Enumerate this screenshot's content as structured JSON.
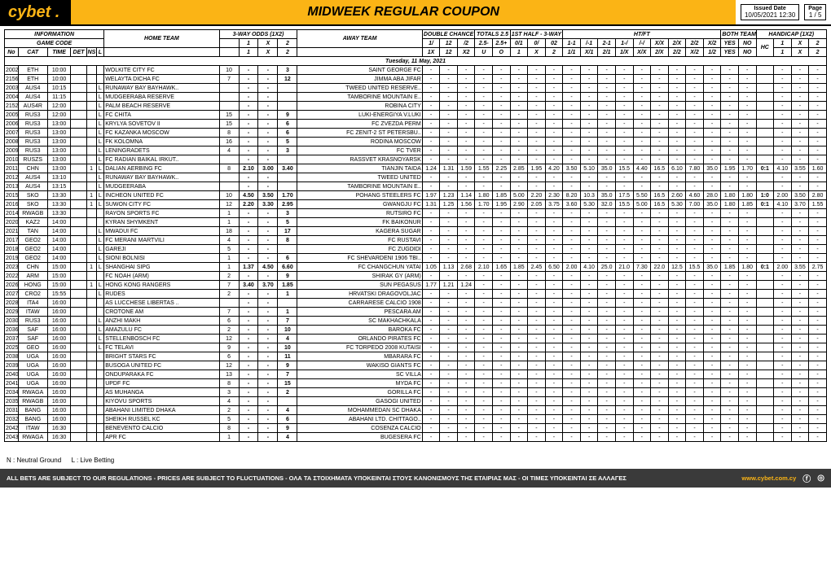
{
  "brand": "cybet",
  "title": "MIDWEEK REGULAR COUPON",
  "issued_label": "Issued Date",
  "issued_value": "10/05/2021 12:30",
  "page_label": "Page",
  "page_value": "1 / 5",
  "colors": {
    "accent": "#fbb415",
    "footer_bg": "#3a3a3a"
  },
  "header_groups": [
    "INFORMATION",
    "3-WAY ODDS (1X2)",
    "",
    "DOUBLE CHANCE",
    "TOTALS 2.5",
    "1ST HALF - 3-WAY",
    "HT/FT",
    "BOTH TEAMS TO SCORE",
    "HANDICAP (1X2)"
  ],
  "header_row2_left": "GAME CODE",
  "header_row2_home": "HOME TEAM",
  "header_row2_away": "AWAY TEAM",
  "sub_1x2": [
    "1",
    "X",
    "2"
  ],
  "sub_left": [
    "No",
    "CAT",
    "TIME",
    "DET",
    "NS",
    "L"
  ],
  "sub_dc": [
    "1/",
    "12",
    "/2"
  ],
  "sub_tot": [
    "2.5-",
    "2.5+"
  ],
  "sub_1h": [
    "0/1",
    "0/",
    "02"
  ],
  "sub_htft": [
    "1-1",
    "/-1",
    "2-1",
    "1-/",
    "/-/",
    "X/X",
    "2/X",
    "2/2",
    "X/2",
    "/-2",
    "1-2",
    "++"
  ],
  "sub_bt": [
    "YES",
    "NO"
  ],
  "sub_hc": [
    "HC",
    "1",
    "X",
    "2"
  ],
  "sub_mid": [
    "1X",
    "12",
    "X2",
    "U",
    "O",
    "1",
    "X",
    "2",
    "1/1",
    "X/1",
    "2/1",
    "1/X",
    "X/X",
    "2/X",
    "2/2",
    "X/2",
    "1/2"
  ],
  "date_heading": "Tuesday, 11 May, 2021",
  "legend": "N : Neutral Ground   L : Live Betting",
  "disclaimer": "ALL BETS ARE SUBJECT TO OUR REGULATIONS - PRICES ARE SUBJECT TO FLUCTUATIONS - ΟΛΑ ΤΑ ΣΤΟΙΧΗΜΑΤΑ ΥΠΟΚΕΙΝΤΑΙ ΣΤΟΥΣ ΚΑΝΟΝΙΣΜΟΥΣ ΤΗΣ ΕΤΑΙΡΙΑΣ ΜΑΣ - ΟΙ ΤΙΜΕΣ ΥΠΟΚΕΙΝΤΑΙ ΣΕ ΑΛΛΑΓΕΣ",
  "url": "www.cybet.com.cy",
  "rows": [
    {
      "no": "2002",
      "cat": "ETH",
      "time": "10:00",
      "l": "",
      "home": "WOLKITE CITY FC",
      "o1": "10",
      "ox": "-",
      "o2": "-",
      "ac": "3",
      "away": "SAINT GEORGE FC"
    },
    {
      "no": "2156",
      "cat": "ETH",
      "time": "10:00",
      "l": "",
      "home": "WELAYTA DICHA FC",
      "o1": "7",
      "ox": "-",
      "o2": "-",
      "ac": "12",
      "away": "JIMMA ABA JIFAR"
    },
    {
      "no": "2003",
      "cat": "AUS4",
      "time": "10:15",
      "l": "L",
      "home": "RUNAWAY BAY BAYHAWK..",
      "o1": "",
      "ox": "-",
      "o2": "-",
      "ac": "",
      "away": "TWEED UNITED RESERVE.."
    },
    {
      "no": "2004",
      "cat": "AUS4",
      "time": "11:15",
      "l": "L",
      "home": "MUDGEERABA RESERVE",
      "o1": "",
      "ox": "-",
      "o2": "-",
      "ac": "",
      "away": "TAMBORINE MOUNTAIN E.."
    },
    {
      "no": "2152",
      "cat": "AUS4R",
      "time": "12:00",
      "l": "L",
      "home": "PALM BEACH RESERVE",
      "o1": "",
      "ox": "-",
      "o2": "-",
      "ac": "",
      "away": "ROBINA CITY"
    },
    {
      "no": "2005",
      "cat": "RUS3",
      "time": "12:00",
      "l": "L",
      "home": "FC CHITA",
      "o1": "15",
      "ox": "-",
      "o2": "-",
      "ac": "9",
      "away": "LUKI-ENERGIYA V.LUKI"
    },
    {
      "no": "2006",
      "cat": "RUS3",
      "time": "13:00",
      "l": "L",
      "home": "KRYLYA SOVETOV II",
      "o1": "15",
      "ox": "-",
      "o2": "-",
      "ac": "6",
      "away": "FC ZVEZDA PERM"
    },
    {
      "no": "2007",
      "cat": "RUS3",
      "time": "13:00",
      "l": "L",
      "home": "FC KAZANKA MOSCOW",
      "o1": "8",
      "ox": "-",
      "o2": "-",
      "ac": "6",
      "away": "FC ZENIT-2 ST PETERSBU.."
    },
    {
      "no": "2008",
      "cat": "RUS3",
      "time": "13:00",
      "l": "L",
      "home": "FK KOLOMNA",
      "o1": "16",
      "ox": "-",
      "o2": "-",
      "ac": "5",
      "away": "RODINA MOSCOW"
    },
    {
      "no": "2009",
      "cat": "RUS3",
      "time": "13:00",
      "l": "L",
      "home": "LENINGRADETS",
      "o1": "4",
      "ox": "-",
      "o2": "-",
      "ac": "3",
      "away": "FC TVER"
    },
    {
      "no": "2010",
      "cat": "RUSZS",
      "time": "13:00",
      "l": "L",
      "home": "FC RADIAN BAIKAL IRKUT..",
      "o1": "",
      "ox": "-",
      "o2": "-",
      "ac": "",
      "away": "RASSVET KRASNOYARSK"
    },
    {
      "no": "2011",
      "cat": "CHN",
      "time": "13:00",
      "ns": "1",
      "l": "L",
      "home": "DALIAN AERBING FC",
      "o1": "8",
      "ox": "2.10",
      "o2": "3.00",
      "o3": "3.40",
      "ac": "7",
      "away": "TIANJIN TAIDA",
      "odds": [
        "1.24",
        "1.31",
        "1.59",
        "1.55",
        "2.25",
        "2.85",
        "1.95",
        "4.20",
        "3.50",
        "5.10",
        "35.0",
        "15.5",
        "4.40",
        "16.5",
        "6.10",
        "7.80",
        "35.0",
        "1.95",
        "1.70"
      ],
      "hc": [
        "0:1",
        "4.10",
        "3.55",
        "1.60"
      ]
    },
    {
      "no": "2012",
      "cat": "AUS4",
      "time": "13:10",
      "l": "L",
      "home": "RUNAWAY BAY BAYHAWK..",
      "o1": "",
      "ox": "-",
      "o2": "-",
      "ac": "",
      "away": "TWEED UNITED"
    },
    {
      "no": "2013",
      "cat": "AUS4",
      "time": "13:15",
      "l": "L",
      "home": "MUDGEERABA",
      "o1": "",
      "ox": "-",
      "o2": "-",
      "ac": "",
      "away": "TAMBORINE MOUNTAIN E.."
    },
    {
      "no": "2015",
      "cat": "SKO",
      "time": "13:30",
      "ns": "1",
      "l": "L",
      "home": "INCHEON UNITED FC",
      "o1": "10",
      "ox": "4.50",
      "o2": "3.50",
      "o3": "1.70",
      "ac": "6",
      "away": "POHANG STEELERS FC",
      "odds": [
        "1.97",
        "1.23",
        "1.14",
        "1.80",
        "1.85",
        "5.00",
        "2.20",
        "2.30",
        "8.20",
        "10.3",
        "35.0",
        "17.5",
        "5.50",
        "16.5",
        "2.60",
        "4.60",
        "28.0",
        "1.80",
        "1.80"
      ],
      "hc": [
        "1:0",
        "2.00",
        "3.50",
        "2.80"
      ]
    },
    {
      "no": "2016",
      "cat": "SKO",
      "time": "13:30",
      "ns": "1",
      "l": "L",
      "home": "SUWON CITY FC",
      "o1": "12",
      "ox": "2.20",
      "o2": "3.30",
      "o3": "2.95",
      "ac": "11",
      "away": "GWANGJU FC",
      "odds": [
        "1.31",
        "1.25",
        "1.56",
        "1.70",
        "1.95",
        "2.90",
        "2.05",
        "3.75",
        "3.60",
        "5.30",
        "32.0",
        "15.5",
        "5.00",
        "16.5",
        "5.30",
        "7.00",
        "35.0",
        "1.80",
        "1.85"
      ],
      "hc": [
        "0:1",
        "4.10",
        "3.70",
        "1.55"
      ]
    },
    {
      "no": "2014",
      "cat": "RWAGB",
      "time": "13:30",
      "l": "",
      "home": "RAYON SPORTS FC",
      "o1": "1",
      "ox": "-",
      "o2": "-",
      "ac": "3",
      "away": "RUTSIRO FC"
    },
    {
      "no": "2020",
      "cat": "KAZ2",
      "time": "14:00",
      "l": "",
      "home": "KYRAN SHYMKENT",
      "o1": "1",
      "ox": "-",
      "o2": "-",
      "ac": "5",
      "away": "FK BAIKONUR"
    },
    {
      "no": "2021",
      "cat": "TAN",
      "time": "14:00",
      "l": "L",
      "home": "MWADUI FC",
      "o1": "18",
      "ox": "-",
      "o2": "-",
      "ac": "17",
      "away": "KAGERA SUGAR"
    },
    {
      "no": "2017",
      "cat": "GEO2",
      "time": "14:00",
      "l": "L",
      "home": "FC MERANI MARTVILI",
      "o1": "4",
      "ox": "-",
      "o2": "-",
      "ac": "8",
      "away": "FC RUSTAVI"
    },
    {
      "no": "2018",
      "cat": "GEO2",
      "time": "14:00",
      "l": "L",
      "home": "GAREJI",
      "o1": "5",
      "ox": "-",
      "o2": "-",
      "ac": "",
      "away": "FC ZUGDIDI"
    },
    {
      "no": "2019",
      "cat": "GEO2",
      "time": "14:00",
      "l": "L",
      "home": "SIONI BOLNISI",
      "o1": "1",
      "ox": "-",
      "o2": "-",
      "ac": "6",
      "away": "FC SHEVARDENI 1906 TBI.."
    },
    {
      "no": "2023",
      "cat": "CHN",
      "time": "15:00",
      "ns": "1",
      "l": "L",
      "home": "SHANGHAI SIPG",
      "o1": "1",
      "ox": "1.37",
      "o2": "4.50",
      "o3": "6.60",
      "ac": "4",
      "away": "FC CHANGCHUN YATAI",
      "odds": [
        "1.05",
        "1.13",
        "2.68",
        "2.10",
        "1.65",
        "1.85",
        "2.45",
        "6.50",
        "2.00",
        "4.10",
        "25.0",
        "21.0",
        "7.30",
        "22.0",
        "12.5",
        "15.5",
        "35.0",
        "1.85",
        "1.80"
      ],
      "hc": [
        "0:1",
        "2.00",
        "3.55",
        "2.75"
      ]
    },
    {
      "no": "2022",
      "cat": "ARM",
      "time": "15:00",
      "l": "",
      "home": "FC NOAH (ARM)",
      "o1": "2",
      "ox": "-",
      "o2": "-",
      "ac": "9",
      "away": "SHIRAK GY (ARM)"
    },
    {
      "no": "2026",
      "cat": "HONG",
      "time": "15:00",
      "ns": "1",
      "l": "L",
      "home": "HONG KONG RANGERS",
      "o1": "7",
      "ox": "3.40",
      "o2": "3.70",
      "o3": "1.85",
      "ac": "3",
      "away": "SUN PEGASUS",
      "odds": [
        "1.77",
        "1.21",
        "1.24"
      ]
    },
    {
      "no": "2027",
      "cat": "CRO2",
      "time": "15:55",
      "l": "L",
      "home": "RUDES",
      "o1": "2",
      "ox": "-",
      "o2": "-",
      "ac": "1",
      "away": "HRVATSKI DRAGOVOLJAC"
    },
    {
      "no": "2028",
      "cat": "ITA4",
      "time": "16:00",
      "l": "",
      "home": "AS LUCCHESE LIBERTAS ..",
      "o1": "",
      "ox": "-",
      "o2": "-",
      "ac": "",
      "away": "CARRARESE CALCIO 1908"
    },
    {
      "no": "2029",
      "cat": "ITAW",
      "time": "16:00",
      "l": "",
      "home": "CROTONE AM",
      "o1": "7",
      "ox": "-",
      "o2": "-",
      "ac": "1",
      "away": "PESCARA AM"
    },
    {
      "no": "2030",
      "cat": "RUS3",
      "time": "16:00",
      "l": "L",
      "home": "ANZHI MAKH",
      "o1": "6",
      "ox": "-",
      "o2": "-",
      "ac": "7",
      "away": "SC MAKHACHKALA"
    },
    {
      "no": "2036",
      "cat": "SAF",
      "time": "16:00",
      "l": "L",
      "home": "AMAZULU FC",
      "o1": "2",
      "ox": "-",
      "o2": "-",
      "ac": "10",
      "away": "BAROKA FC"
    },
    {
      "no": "2037",
      "cat": "SAF",
      "time": "16:00",
      "l": "L",
      "home": "STELLENBOSCH FC",
      "o1": "12",
      "ox": "-",
      "o2": "-",
      "ac": "4",
      "away": "ORLANDO PIRATES FC"
    },
    {
      "no": "2025",
      "cat": "GEO",
      "time": "16:00",
      "l": "L",
      "home": "FC TELAVI",
      "o1": "9",
      "ox": "-",
      "o2": "-",
      "ac": "10",
      "away": "FC TORPEDO 2008 KUTAISI"
    },
    {
      "no": "2038",
      "cat": "UGA",
      "time": "16:00",
      "l": "",
      "home": "BRIGHT STARS FC",
      "o1": "6",
      "ox": "-",
      "o2": "-",
      "ac": "11",
      "away": "MBARARA FC"
    },
    {
      "no": "2039",
      "cat": "UGA",
      "time": "16:00",
      "l": "",
      "home": "BUSOGA UNITED FC",
      "o1": "12",
      "ox": "-",
      "o2": "-",
      "ac": "9",
      "away": "WAKISO GIANTS FC"
    },
    {
      "no": "2040",
      "cat": "UGA",
      "time": "16:00",
      "l": "",
      "home": "ONDUPARAKA FC",
      "o1": "13",
      "ox": "-",
      "o2": "-",
      "ac": "7",
      "away": "SC VILLA"
    },
    {
      "no": "2041",
      "cat": "UGA",
      "time": "16:00",
      "l": "",
      "home": "UPDF FC",
      "o1": "8",
      "ox": "-",
      "o2": "-",
      "ac": "15",
      "away": "MYDA FC"
    },
    {
      "no": "2034",
      "cat": "RWAGA",
      "time": "16:00",
      "l": "",
      "home": "AS MUHANGA",
      "o1": "3",
      "ox": "-",
      "o2": "-",
      "ac": "2",
      "away": "GORILLA FC"
    },
    {
      "no": "2035",
      "cat": "RWAGB",
      "time": "16:00",
      "l": "",
      "home": "KIYOVU SPORTS",
      "o1": "4",
      "ox": "-",
      "o2": "-",
      "ac": "",
      "away": "GASOGI UNITED"
    },
    {
      "no": "2031",
      "cat": "BANG",
      "time": "16:00",
      "l": "",
      "home": "ABAHANI LIMITED DHAKA",
      "o1": "2",
      "ox": "-",
      "o2": "-",
      "ac": "4",
      "away": "MOHAMMEDAN SC DHAKA"
    },
    {
      "no": "2032",
      "cat": "BANG",
      "time": "16:00",
      "l": "",
      "home": "SHEIKH RUSSEL KC",
      "o1": "5",
      "ox": "-",
      "o2": "-",
      "ac": "6",
      "away": "ABAHANI LTD. CHITTAGO.."
    },
    {
      "no": "2042",
      "cat": "ITAW",
      "time": "16:30",
      "l": "",
      "home": "BENEVENTO CALCIO",
      "o1": "8",
      "ox": "-",
      "o2": "-",
      "ac": "9",
      "away": "COSENZA CALCIO"
    },
    {
      "no": "2043",
      "cat": "RWAGA",
      "time": "16:30",
      "l": "",
      "home": "APR FC",
      "o1": "1",
      "ox": "-",
      "o2": "-",
      "ac": "4",
      "away": "BUGESERA FC"
    }
  ]
}
